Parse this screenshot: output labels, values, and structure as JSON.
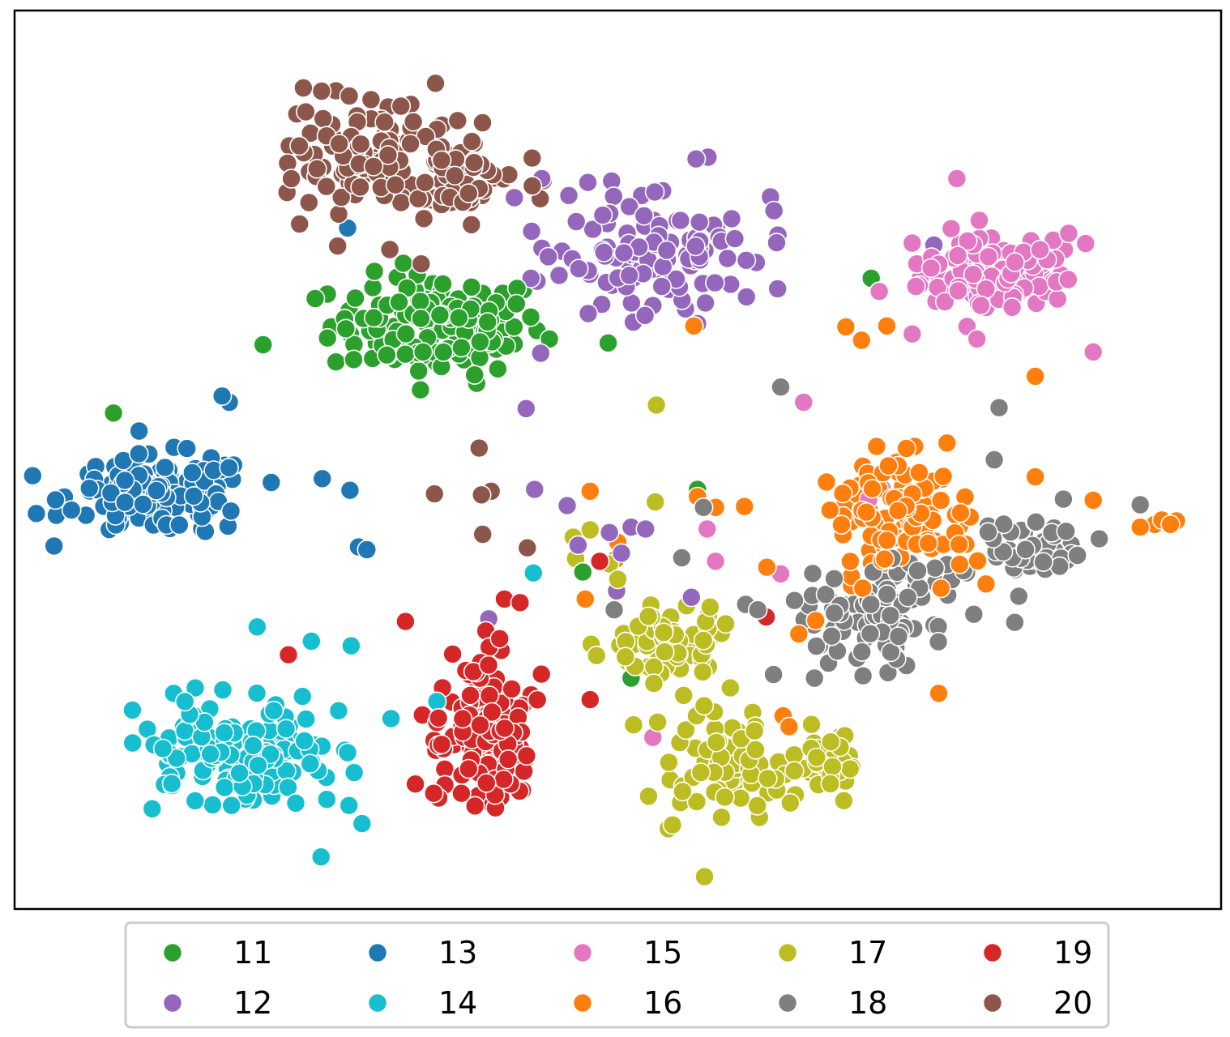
{
  "chart_data": {
    "type": "scatter",
    "title": "",
    "xlabel": "",
    "ylabel": "",
    "xlim": [
      0,
      100
    ],
    "ylim": [
      0,
      100
    ],
    "axes_ticks": "none",
    "grid": false,
    "legend": {
      "placement": "bottom-center",
      "columns": 5,
      "framed": true
    },
    "series": [
      {
        "name": "11",
        "color": "#2ca02c",
        "clusters": [
          [
            35,
            65,
            8,
            5,
            150
          ]
        ],
        "points": [
          [
            8.2,
            55.2
          ],
          [
            20.6,
            62.8
          ],
          [
            71.0,
            70.2
          ],
          [
            49.2,
            63.0
          ],
          [
            38.3,
            58.5
          ],
          [
            56.6,
            46.7
          ],
          [
            51.1,
            25.7
          ],
          [
            47.1,
            37.5
          ]
        ]
      },
      {
        "name": "12",
        "color": "#9467bd",
        "clusters": [
          [
            53,
            73,
            8,
            7,
            120
          ]
        ],
        "points": [
          [
            43.7,
            81.3
          ],
          [
            76.2,
            73.9
          ],
          [
            42.8,
            70.2
          ],
          [
            43.1,
            46.7
          ],
          [
            42.4,
            55.7
          ],
          [
            45.8,
            44.9
          ],
          [
            46.7,
            40.5
          ],
          [
            49.3,
            41.9
          ],
          [
            50.3,
            39.6
          ],
          [
            51.1,
            42.5
          ],
          [
            52.3,
            42.3
          ],
          [
            49.9,
            35.4
          ],
          [
            56.1,
            34.7
          ],
          [
            39.3,
            32.3
          ]
        ]
      },
      {
        "name": "13",
        "color": "#1f77b4",
        "clusters": [
          [
            12,
            46,
            7,
            4,
            150
          ]
        ],
        "points": [
          [
            17.2,
            57.1
          ],
          [
            17.8,
            56.4
          ],
          [
            27.6,
            75.8
          ],
          [
            27.8,
            46.6
          ],
          [
            28.5,
            40.3
          ],
          [
            29.2,
            40.0
          ],
          [
            25.5,
            47.9
          ]
        ]
      },
      {
        "name": "14",
        "color": "#17becf",
        "clusters": [
          [
            19,
            17,
            8,
            5,
            150
          ]
        ],
        "points": [
          [
            20.1,
            31.4
          ],
          [
            24.6,
            29.8
          ],
          [
            27.9,
            29.3
          ],
          [
            31.2,
            21.2
          ],
          [
            35.0,
            23.1
          ],
          [
            43.0,
            37.4
          ],
          [
            28.8,
            9.5
          ],
          [
            25.4,
            5.8
          ]
        ]
      },
      {
        "name": "15",
        "color": "#e377c2",
        "clusters": [
          [
            81,
            71,
            6,
            5,
            110
          ]
        ],
        "points": [
          [
            65.4,
            56.4
          ],
          [
            58.1,
            38.7
          ],
          [
            63.5,
            37.3
          ],
          [
            57.4,
            42.3
          ],
          [
            70.8,
            45.6
          ],
          [
            71.9,
            46.8
          ],
          [
            52.9,
            19.1
          ],
          [
            89.4,
            62.0
          ],
          [
            78.1,
            81.3
          ],
          [
            74.4,
            64.0
          ]
        ]
      },
      {
        "name": "16",
        "color": "#ff7f0e",
        "clusters": [
          [
            73,
            44,
            6,
            6,
            110
          ]
        ],
        "points": [
          [
            94.5,
            42.8
          ],
          [
            95.1,
            43.3
          ],
          [
            95.8,
            42.8
          ],
          [
            96.3,
            43.2
          ],
          [
            93.3,
            42.5
          ],
          [
            89.4,
            45.5
          ],
          [
            68.9,
            64.8
          ],
          [
            70.2,
            63.3
          ],
          [
            72.3,
            64.9
          ],
          [
            56.3,
            64.9
          ],
          [
            47.7,
            46.5
          ],
          [
            50.0,
            40.8
          ],
          [
            49.8,
            38.9
          ],
          [
            47.3,
            34.5
          ],
          [
            56.6,
            45.9
          ],
          [
            58.1,
            44.7
          ],
          [
            60.5,
            44.8
          ],
          [
            63.7,
            21.5
          ],
          [
            64.2,
            20.3
          ],
          [
            76.6,
            24.0
          ],
          [
            84.6,
            59.3
          ],
          [
            74.6,
            51.5
          ],
          [
            70.3,
            35.7
          ],
          [
            65.0,
            30.6
          ],
          [
            66.4,
            32.1
          ]
        ]
      },
      {
        "name": "17",
        "color": "#bcbd22",
        "clusters": [
          [
            54,
            30,
            4,
            4,
            70
          ],
          [
            59,
            16,
            4,
            6,
            70
          ],
          [
            67,
            16,
            3,
            3,
            40
          ]
        ],
        "points": [
          [
            46.5,
            39.0
          ],
          [
            53.1,
            45.3
          ],
          [
            53.2,
            56.1
          ],
          [
            46.3,
            41.4
          ],
          [
            47.7,
            42.2
          ],
          [
            49.3,
            38.4
          ],
          [
            50.0,
            36.7
          ],
          [
            53.3,
            20.8
          ],
          [
            51.3,
            20.5
          ]
        ]
      },
      {
        "name": "18",
        "color": "#7f7f7f",
        "clusters": [
          [
            72,
            33,
            5,
            5,
            100
          ],
          [
            84,
            40,
            4,
            3,
            50
          ]
        ],
        "points": [
          [
            63.5,
            58.1
          ],
          [
            81.6,
            55.8
          ],
          [
            60.6,
            33.9
          ],
          [
            61.6,
            33.3
          ],
          [
            55.3,
            39.1
          ],
          [
            57.1,
            44.7
          ],
          [
            62.9,
            26.1
          ],
          [
            66.3,
            25.7
          ],
          [
            79.5,
            32.8
          ],
          [
            82.9,
            31.9
          ],
          [
            89.9,
            41.2
          ],
          [
            93.3,
            45.0
          ],
          [
            81.2,
            50.0
          ],
          [
            49.7,
            33.3
          ]
        ]
      },
      {
        "name": "19",
        "color": "#d62728",
        "clusters": [
          [
            39,
            19,
            3.5,
            8,
            150
          ]
        ],
        "points": [
          [
            32.4,
            32.0
          ],
          [
            40.6,
            34.5
          ],
          [
            41.9,
            34.1
          ],
          [
            22.7,
            28.3
          ],
          [
            33.8,
            21.6
          ],
          [
            47.7,
            23.3
          ],
          [
            62.3,
            32.5
          ],
          [
            48.5,
            38.7
          ]
        ]
      },
      {
        "name": "20",
        "color": "#8c564b",
        "clusters": [
          [
            28,
            84,
            5,
            7,
            80
          ],
          [
            36,
            82,
            5,
            4,
            80
          ]
        ],
        "points": [
          [
            33.7,
            71.8
          ],
          [
            31.1,
            73.4
          ],
          [
            38.7,
            46.1
          ],
          [
            39.5,
            46.5
          ],
          [
            34.8,
            46.2
          ],
          [
            38.5,
            51.3
          ],
          [
            38.8,
            41.7
          ],
          [
            42.5,
            40.2
          ]
        ]
      }
    ]
  }
}
